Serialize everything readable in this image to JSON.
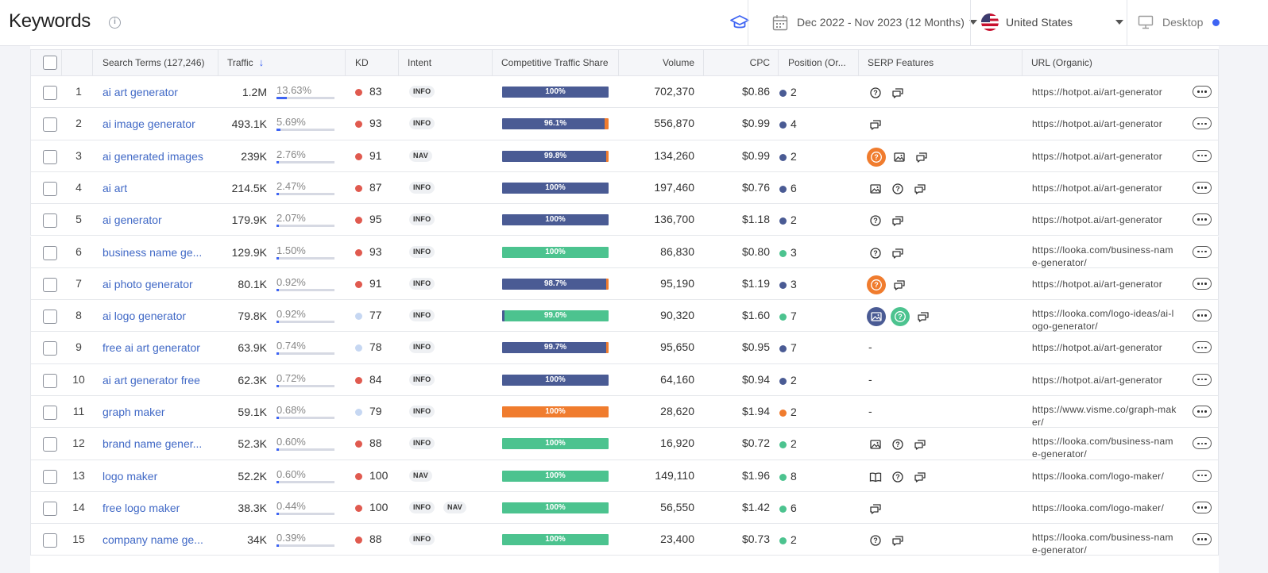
{
  "header": {
    "title": "Keywords",
    "date_range": "Dec 2022 - Nov 2023 (12 Months)",
    "country": "United States",
    "device": "Desktop"
  },
  "columns": {
    "search_terms": "Search Terms (127,246)",
    "traffic": "Traffic",
    "kd": "KD",
    "intent": "Intent",
    "cts": "Competitive Traffic Share",
    "volume": "Volume",
    "cpc": "CPC",
    "position": "Position (Or...",
    "serp": "SERP Features",
    "url": "URL (Organic)"
  },
  "colors": {
    "navy": "#4a5b94",
    "green": "#4cc38f",
    "orange": "#f07c2e",
    "kd_red": "#e05a4f",
    "kd_light": "#c6d7f2",
    "link": "#4169c6"
  },
  "rows": [
    {
      "num": "1",
      "keyword": "ai art generator",
      "traffic": "1.2M",
      "share": "13.63%",
      "share_frac": 0.1363,
      "kd": "83",
      "kd_level": "hard",
      "intents": [
        "INFO"
      ],
      "cts_label": "100%",
      "cts": [
        {
          "c": "navy",
          "v": 100
        }
      ],
      "volume": "702,370",
      "cpc": "$0.86",
      "pos_color": "navy",
      "position": "2",
      "serp": [
        "question-icon",
        "reviews-icon"
      ],
      "url": "https://hotpot.ai/art-generator"
    },
    {
      "num": "2",
      "keyword": "ai image generator",
      "traffic": "493.1K",
      "share": "5.69%",
      "share_frac": 0.0569,
      "kd": "93",
      "kd_level": "hard",
      "intents": [
        "INFO"
      ],
      "cts_label": "96.1%",
      "cts": [
        {
          "c": "navy",
          "v": 96.1
        },
        {
          "c": "orange",
          "v": 3.9
        }
      ],
      "volume": "556,870",
      "cpc": "$0.99",
      "pos_color": "navy",
      "position": "4",
      "serp": [
        "reviews-icon"
      ],
      "url": "https://hotpot.ai/art-generator"
    },
    {
      "num": "3",
      "keyword": "ai generated images",
      "traffic": "239K",
      "share": "2.76%",
      "share_frac": 0.0276,
      "kd": "91",
      "kd_level": "hard",
      "intents": [
        "NAV"
      ],
      "cts_label": "99.8%",
      "cts": [
        {
          "c": "navy",
          "v": 99.8
        },
        {
          "c": "orange",
          "v": 0.2
        }
      ],
      "volume": "134,260",
      "cpc": "$0.99",
      "pos_color": "navy",
      "position": "2",
      "serp": [
        "question-orange-icon",
        "image-icon",
        "reviews-icon"
      ],
      "url": "https://hotpot.ai/art-generator"
    },
    {
      "num": "4",
      "keyword": "ai art",
      "traffic": "214.5K",
      "share": "2.47%",
      "share_frac": 0.0247,
      "kd": "87",
      "kd_level": "hard",
      "intents": [
        "INFO"
      ],
      "cts_label": "100%",
      "cts": [
        {
          "c": "navy",
          "v": 100
        }
      ],
      "volume": "197,460",
      "cpc": "$0.76",
      "pos_color": "navy",
      "position": "6",
      "serp": [
        "image-icon",
        "question-icon",
        "reviews-icon"
      ],
      "url": "https://hotpot.ai/art-generator"
    },
    {
      "num": "5",
      "keyword": "ai generator",
      "traffic": "179.9K",
      "share": "2.07%",
      "share_frac": 0.0207,
      "kd": "95",
      "kd_level": "hard",
      "intents": [
        "INFO"
      ],
      "cts_label": "100%",
      "cts": [
        {
          "c": "navy",
          "v": 100
        }
      ],
      "volume": "136,700",
      "cpc": "$1.18",
      "pos_color": "navy",
      "position": "2",
      "serp": [
        "question-icon",
        "reviews-icon"
      ],
      "url": "https://hotpot.ai/art-generator"
    },
    {
      "num": "6",
      "keyword": "business name ge...",
      "traffic": "129.9K",
      "share": "1.50%",
      "share_frac": 0.015,
      "kd": "93",
      "kd_level": "hard",
      "intents": [
        "INFO"
      ],
      "cts_label": "100%",
      "cts": [
        {
          "c": "green",
          "v": 100
        }
      ],
      "volume": "86,830",
      "cpc": "$0.80",
      "pos_color": "green",
      "position": "3",
      "serp": [
        "question-icon",
        "reviews-icon"
      ],
      "url": "https://looka.com/business-name-generator/"
    },
    {
      "num": "7",
      "keyword": "ai photo generator",
      "traffic": "80.1K",
      "share": "0.92%",
      "share_frac": 0.0092,
      "kd": "91",
      "kd_level": "hard",
      "intents": [
        "INFO"
      ],
      "cts_label": "98.7%",
      "cts": [
        {
          "c": "navy",
          "v": 98.7
        },
        {
          "c": "orange",
          "v": 1.3
        }
      ],
      "volume": "95,190",
      "cpc": "$1.19",
      "pos_color": "navy",
      "position": "3",
      "serp": [
        "question-orange-icon",
        "reviews-icon"
      ],
      "url": "https://hotpot.ai/art-generator"
    },
    {
      "num": "8",
      "keyword": "ai logo generator",
      "traffic": "79.8K",
      "share": "0.92%",
      "share_frac": 0.0092,
      "kd": "77",
      "kd_level": "medium",
      "intents": [
        "INFO"
      ],
      "cts_label": "99.0%",
      "cts": [
        {
          "c": "navy",
          "v": 1
        },
        {
          "c": "green",
          "v": 99
        }
      ],
      "volume": "90,320",
      "cpc": "$1.60",
      "pos_color": "green",
      "position": "7",
      "serp": [
        "image-navy-icon",
        "question-green-icon",
        "reviews-icon"
      ],
      "url": "https://looka.com/logo-ideas/ai-logo-generator/"
    },
    {
      "num": "9",
      "keyword": "free ai art generator",
      "traffic": "63.9K",
      "share": "0.74%",
      "share_frac": 0.0074,
      "kd": "78",
      "kd_level": "medium",
      "intents": [
        "INFO"
      ],
      "cts_label": "99.7%",
      "cts": [
        {
          "c": "navy",
          "v": 99.7
        },
        {
          "c": "orange",
          "v": 0.3
        }
      ],
      "volume": "95,650",
      "cpc": "$0.95",
      "pos_color": "navy",
      "position": "7",
      "serp": [],
      "url": "https://hotpot.ai/art-generator"
    },
    {
      "num": "10",
      "keyword": "ai art generator free",
      "traffic": "62.3K",
      "share": "0.72%",
      "share_frac": 0.0072,
      "kd": "84",
      "kd_level": "hard",
      "intents": [
        "INFO"
      ],
      "cts_label": "100%",
      "cts": [
        {
          "c": "navy",
          "v": 100
        }
      ],
      "volume": "64,160",
      "cpc": "$0.94",
      "pos_color": "navy",
      "position": "2",
      "serp": [],
      "url": "https://hotpot.ai/art-generator"
    },
    {
      "num": "11",
      "keyword": "graph maker",
      "traffic": "59.1K",
      "share": "0.68%",
      "share_frac": 0.0068,
      "kd": "79",
      "kd_level": "medium",
      "intents": [
        "INFO"
      ],
      "cts_label": "100%",
      "cts": [
        {
          "c": "orange",
          "v": 100
        }
      ],
      "volume": "28,620",
      "cpc": "$1.94",
      "pos_color": "orange",
      "position": "2",
      "serp": [],
      "url": "https://www.visme.co/graph-maker/"
    },
    {
      "num": "12",
      "keyword": "brand name gener...",
      "traffic": "52.3K",
      "share": "0.60%",
      "share_frac": 0.006,
      "kd": "88",
      "kd_level": "hard",
      "intents": [
        "INFO"
      ],
      "cts_label": "100%",
      "cts": [
        {
          "c": "green",
          "v": 100
        }
      ],
      "volume": "16,920",
      "cpc": "$0.72",
      "pos_color": "green",
      "position": "2",
      "serp": [
        "image-icon",
        "question-icon",
        "reviews-icon"
      ],
      "url": "https://looka.com/business-name-generator/"
    },
    {
      "num": "13",
      "keyword": "logo maker",
      "traffic": "52.2K",
      "share": "0.60%",
      "share_frac": 0.006,
      "kd": "100",
      "kd_level": "hard",
      "intents": [
        "NAV"
      ],
      "cts_label": "100%",
      "cts": [
        {
          "c": "green",
          "v": 100
        }
      ],
      "volume": "149,110",
      "cpc": "$1.96",
      "pos_color": "green",
      "position": "8",
      "serp": [
        "book-icon",
        "question-icon",
        "reviews-icon"
      ],
      "url": "https://looka.com/logo-maker/"
    },
    {
      "num": "14",
      "keyword": "free logo maker",
      "traffic": "38.3K",
      "share": "0.44%",
      "share_frac": 0.0044,
      "kd": "100",
      "kd_level": "hard",
      "intents": [
        "INFO",
        "NAV"
      ],
      "cts_label": "100%",
      "cts": [
        {
          "c": "green",
          "v": 100
        }
      ],
      "volume": "56,550",
      "cpc": "$1.42",
      "pos_color": "green",
      "position": "6",
      "serp": [
        "reviews-icon"
      ],
      "url": "https://looka.com/logo-maker/"
    },
    {
      "num": "15",
      "keyword": "company name ge...",
      "traffic": "34K",
      "share": "0.39%",
      "share_frac": 0.0039,
      "kd": "88",
      "kd_level": "hard",
      "intents": [
        "INFO"
      ],
      "cts_label": "100%",
      "cts": [
        {
          "c": "green",
          "v": 100
        }
      ],
      "volume": "23,400",
      "cpc": "$0.73",
      "pos_color": "green",
      "position": "2",
      "serp": [
        "question-icon",
        "reviews-icon"
      ],
      "url": "https://looka.com/business-name-generator/"
    }
  ],
  "empty_serp": "-"
}
